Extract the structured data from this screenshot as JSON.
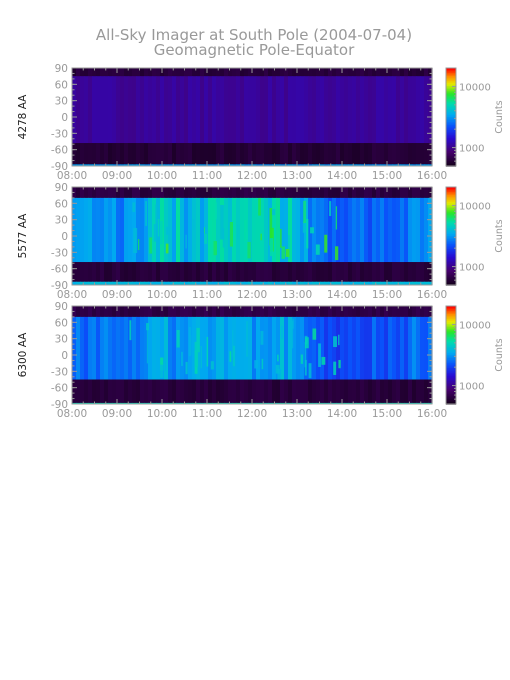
{
  "figure": {
    "title_line1": "All-Sky Imager at South Pole (2004-07-04)",
    "title_line2": "Geomagnetic Pole-Equator"
  },
  "chart_data": [
    {
      "type": "heatmap",
      "ylabel": "4278 AA",
      "x_tick_labels": [
        "08:00",
        "09:00",
        "10:00",
        "11:00",
        "12:00",
        "13:00",
        "14:00",
        "15:00",
        "16:00"
      ],
      "xlim": [
        "08:00",
        "16:00"
      ],
      "y_tick_values": [
        90,
        60,
        30,
        0,
        -30,
        -60,
        -90
      ],
      "ylim": [
        -90,
        90
      ],
      "colorbar": {
        "label": "Counts",
        "tick_labels": [
          "10000",
          "1000"
        ],
        "tick_values": [
          10000,
          1000
        ],
        "scale": "log"
      },
      "bands": [
        {
          "from": 90,
          "to": 75,
          "level": 0.05
        },
        {
          "from": 75,
          "to": -48,
          "level": 0.2
        },
        {
          "from": -48,
          "to": -87,
          "level": 0.04
        },
        {
          "from": -87,
          "to": -90,
          "level": 0.5
        }
      ],
      "activity": 0.1
    },
    {
      "type": "heatmap",
      "ylabel": "5577 AA",
      "x_tick_labels": [
        "08:00",
        "09:00",
        "10:00",
        "11:00",
        "12:00",
        "13:00",
        "14:00",
        "15:00",
        "16:00"
      ],
      "xlim": [
        "08:00",
        "16:00"
      ],
      "y_tick_values": [
        90,
        60,
        30,
        0,
        -30,
        -60,
        -90
      ],
      "ylim": [
        -90,
        90
      ],
      "colorbar": {
        "label": "Counts",
        "tick_labels": [
          "10000",
          "1000"
        ],
        "tick_values": [
          10000,
          1000
        ],
        "scale": "log"
      },
      "bands": [
        {
          "from": 90,
          "to": 70,
          "level": 0.06
        },
        {
          "from": 70,
          "to": -48,
          "level": 0.48
        },
        {
          "from": -48,
          "to": -84,
          "level": 0.05
        },
        {
          "from": -84,
          "to": -90,
          "level": 0.55
        }
      ],
      "activity": 0.8
    },
    {
      "type": "heatmap",
      "ylabel": "6300 AA",
      "x_tick_labels": [
        "08:00",
        "09:00",
        "10:00",
        "11:00",
        "12:00",
        "13:00",
        "14:00",
        "15:00",
        "16:00"
      ],
      "xlim": [
        "08:00",
        "16:00"
      ],
      "y_tick_values": [
        90,
        60,
        30,
        0,
        -30,
        -60,
        -90
      ],
      "ylim": [
        -90,
        90
      ],
      "colorbar": {
        "label": "Counts",
        "tick_labels": [
          "10000",
          "1000"
        ],
        "tick_values": [
          10000,
          1000
        ],
        "scale": "log"
      },
      "bands": [
        {
          "from": 90,
          "to": 70,
          "level": 0.07
        },
        {
          "from": 70,
          "to": -45,
          "level": 0.44
        },
        {
          "from": -45,
          "to": -88,
          "level": 0.05
        },
        {
          "from": -88,
          "to": -90,
          "level": 0.62
        }
      ],
      "activity": 0.55
    }
  ]
}
